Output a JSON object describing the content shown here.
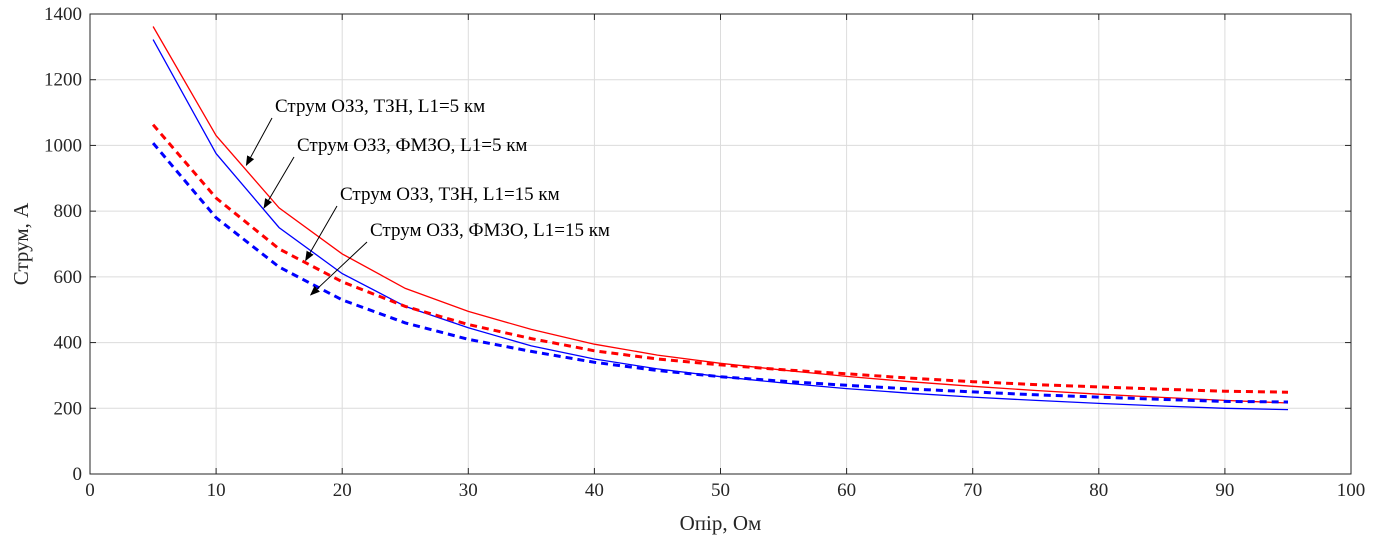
{
  "chart_data": {
    "type": "line",
    "xlabel": "Опір, Ом",
    "ylabel": "Струм, А",
    "xlim": [
      0,
      100
    ],
    "ylim": [
      0,
      1400
    ],
    "xticks": [
      0,
      10,
      20,
      30,
      40,
      50,
      60,
      70,
      80,
      90,
      100
    ],
    "yticks": [
      0,
      200,
      400,
      600,
      800,
      1000,
      1200,
      1400
    ],
    "grid": true,
    "x": [
      5,
      10,
      15,
      20,
      25,
      30,
      35,
      40,
      45,
      50,
      55,
      60,
      65,
      70,
      75,
      80,
      85,
      90,
      95
    ],
    "series": [
      {
        "name": "Струм ОЗЗ, ТЗН, L1=5 км",
        "color": "#ff0000",
        "style": "solid",
        "values": [
          1362,
          1030,
          810,
          670,
          565,
          495,
          440,
          395,
          362,
          337,
          316,
          297,
          281,
          267,
          254,
          243,
          233,
          224,
          216
        ]
      },
      {
        "name": "Струм ОЗЗ, ФМЗО, L1=5 км",
        "color": "#0000ff",
        "style": "solid",
        "values": [
          1322,
          975,
          750,
          610,
          510,
          445,
          390,
          350,
          320,
          296,
          277,
          260,
          246,
          234,
          224,
          215,
          207,
          200,
          196
        ]
      },
      {
        "name": "Струм ОЗЗ, ТЗН, L1=15 км",
        "color": "#ff0000",
        "style": "dashed",
        "values": [
          1063,
          840,
          685,
          585,
          510,
          455,
          412,
          375,
          350,
          332,
          317,
          305,
          292,
          281,
          272,
          265,
          258,
          252,
          249
        ]
      },
      {
        "name": "Струм ОЗЗ, ФМЗО, L1=15 км",
        "color": "#0000ff",
        "style": "dashed",
        "values": [
          1007,
          780,
          630,
          530,
          460,
          410,
          373,
          340,
          315,
          296,
          282,
          270,
          259,
          250,
          241,
          234,
          227,
          221,
          219
        ]
      }
    ],
    "annotations": [
      {
        "text": "Струм ОЗЗ, ТЗН, L1=5 км",
        "arrow_to": [
          12.4,
          940
        ]
      },
      {
        "text": "Струм ОЗЗ, ФМЗО, L1=5 км",
        "arrow_to": [
          13.8,
          810
        ]
      },
      {
        "text": "Струм ОЗЗ, ТЗН, L1=15 км",
        "arrow_to": [
          17.1,
          650
        ]
      },
      {
        "text": "Струм ОЗЗ, ФМЗО, L1=15 км",
        "arrow_to": [
          17.5,
          545
        ]
      }
    ]
  }
}
